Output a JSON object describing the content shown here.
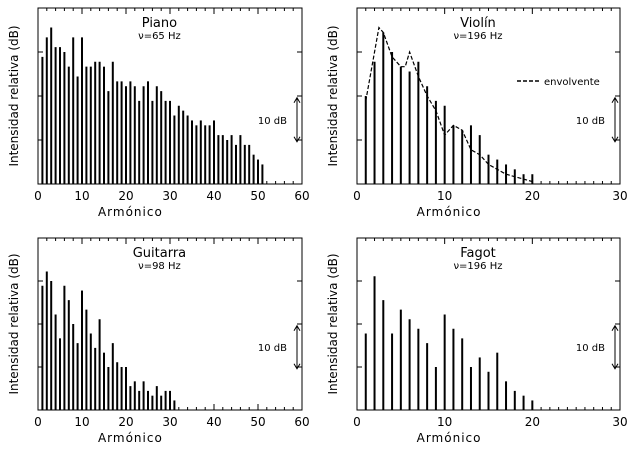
{
  "chart_data": [
    {
      "type": "bar",
      "title": "Piano",
      "subtitle": "ν=65 Hz",
      "xlabel": "Armónico",
      "ylabel": "Intensidad relativa  (dB)",
      "xlim": [
        0,
        60
      ],
      "xticks": [
        "0",
        "10",
        "20",
        "30",
        "40",
        "50",
        "60"
      ],
      "scale_label": "10 dB",
      "x": [
        1,
        2,
        3,
        4,
        5,
        6,
        7,
        8,
        9,
        10,
        11,
        12,
        13,
        14,
        15,
        16,
        17,
        18,
        19,
        20,
        21,
        22,
        23,
        24,
        25,
        26,
        27,
        28,
        29,
        30,
        31,
        32,
        33,
        34,
        35,
        36,
        37,
        38,
        39,
        40,
        41,
        42,
        43,
        44,
        45,
        46,
        47,
        48,
        49,
        50,
        51
      ],
      "values": [
        26,
        30,
        32,
        28,
        28,
        27,
        24,
        30,
        22,
        30,
        24,
        24,
        25,
        25,
        24,
        19,
        25,
        21,
        21,
        20,
        21,
        20,
        17,
        20,
        21,
        17,
        20,
        19,
        17,
        17,
        14,
        16,
        15,
        14,
        13,
        12,
        13,
        12,
        12,
        13,
        10,
        10,
        9,
        10,
        8,
        10,
        8,
        8,
        6,
        5,
        4
      ]
    },
    {
      "type": "bar",
      "title": "Violín",
      "subtitle": "ν=196 Hz",
      "xlabel": "Armónico",
      "ylabel": "Intensidad relativa  (dB)",
      "xlim": [
        0,
        30
      ],
      "xticks": [
        "0",
        "10",
        "20",
        "30"
      ],
      "scale_label": "10 dB",
      "legend": "envolvente",
      "x": [
        1,
        2,
        3,
        4,
        5,
        6,
        7,
        8,
        9,
        10,
        11,
        12,
        13,
        14,
        15,
        16,
        17,
        18,
        19,
        20
      ],
      "values": [
        18,
        25,
        31,
        27,
        24,
        23,
        25,
        20,
        17,
        16,
        12,
        11,
        12,
        10,
        6,
        5,
        4,
        3,
        2,
        2
      ],
      "envelope": [
        [
          1,
          17
        ],
        [
          2,
          27
        ],
        [
          2.5,
          32
        ],
        [
          3,
          31
        ],
        [
          4,
          26
        ],
        [
          5,
          24
        ],
        [
          5.5,
          24
        ],
        [
          6,
          27
        ],
        [
          7,
          22
        ],
        [
          8,
          18
        ],
        [
          9,
          15
        ],
        [
          10,
          10
        ],
        [
          11,
          12
        ],
        [
          12,
          11
        ],
        [
          13,
          7
        ],
        [
          14,
          6
        ],
        [
          15,
          4
        ],
        [
          16,
          3
        ],
        [
          17,
          2
        ],
        [
          18,
          1.5
        ],
        [
          19,
          1
        ],
        [
          20,
          0.5
        ]
      ]
    },
    {
      "type": "bar",
      "title": "Guitarra",
      "subtitle": "ν=98 Hz",
      "xlabel": "Armónico",
      "ylabel": "Intensidad relativa  (dB)",
      "xlim": [
        0,
        60
      ],
      "xticks": [
        "0",
        "10",
        "20",
        "30",
        "40",
        "50",
        "60"
      ],
      "scale_label": "10 dB",
      "x": [
        1,
        2,
        3,
        4,
        5,
        6,
        7,
        8,
        9,
        10,
        11,
        12,
        13,
        14,
        15,
        16,
        17,
        18,
        19,
        20,
        21,
        22,
        23,
        24,
        25,
        26,
        27,
        28,
        29,
        30,
        31
      ],
      "values": [
        26,
        29,
        27,
        20,
        15,
        26,
        23,
        18,
        14,
        25,
        21,
        16,
        13,
        19,
        12,
        9,
        14,
        10,
        9,
        9,
        5,
        6,
        4,
        6,
        4,
        3,
        5,
        3,
        4,
        4,
        2
      ]
    },
    {
      "type": "bar",
      "title": "Fagot",
      "subtitle": "ν=196 Hz",
      "xlabel": "Armónico",
      "ylabel": "Intensidad relativa  (dB)",
      "xlim": [
        0,
        30
      ],
      "xticks": [
        "0",
        "10",
        "20",
        "30"
      ],
      "scale_label": "10 dB",
      "x": [
        1,
        2,
        3,
        4,
        5,
        6,
        7,
        8,
        9,
        10,
        11,
        12,
        13,
        14,
        15,
        16,
        17,
        18,
        19,
        20
      ],
      "values": [
        16,
        28,
        23,
        16,
        21,
        19,
        17,
        14,
        9,
        20,
        17,
        15,
        9,
        11,
        8,
        12,
        6,
        4,
        3,
        2
      ]
    }
  ]
}
